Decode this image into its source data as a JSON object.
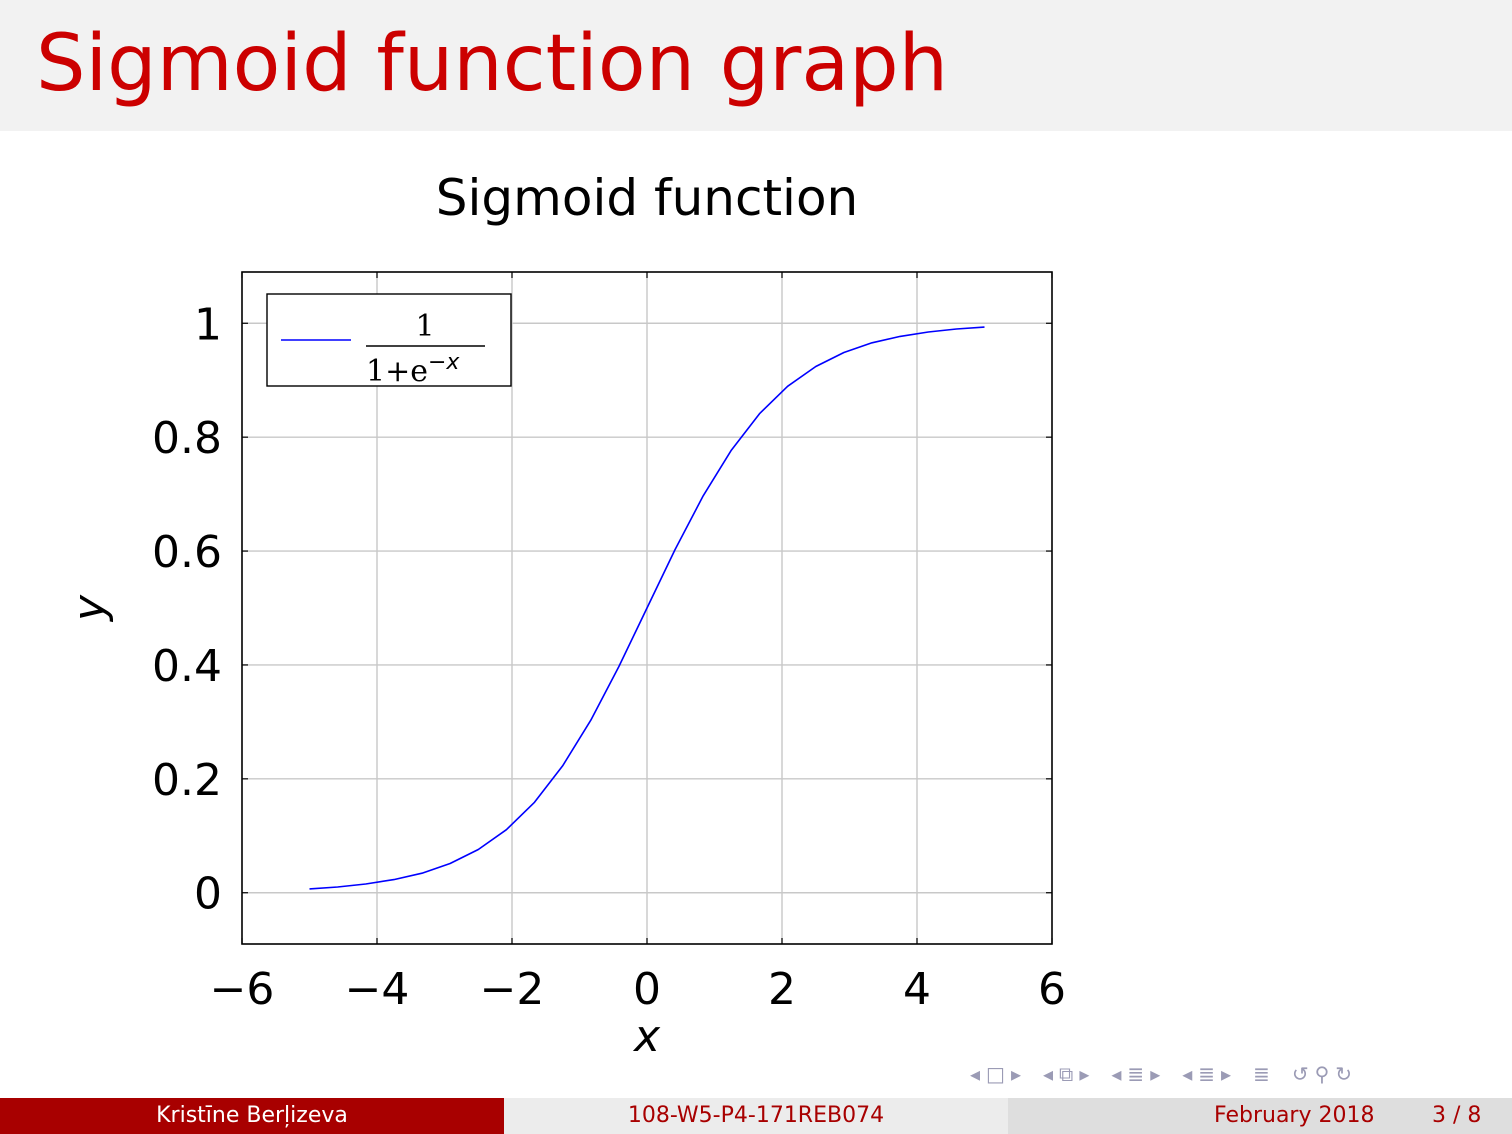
{
  "slide": {
    "title": "Sigmoid function graph"
  },
  "footer": {
    "author": "Kristīne Berļizeva",
    "code": "108-W5-P4-171REB074",
    "date": "February 2018",
    "page": "3 / 8"
  },
  "colors": {
    "title": "#cc0000",
    "footer_dark": "#a80000",
    "series": "#0000ff"
  },
  "nav_icons": [
    "nav-frame-prev-icon",
    "nav-frame-icon",
    "nav-frame-next-icon",
    "nav-subsection-prev-icon",
    "nav-subsection-icon",
    "nav-subsection-next-icon",
    "nav-section-prev-icon",
    "nav-section-icon",
    "nav-section-next-icon",
    "nav-appendix-icon",
    "nav-search-icon",
    "nav-back-icon"
  ],
  "chart_data": {
    "type": "line",
    "title": "Sigmoid function",
    "xlabel": "x",
    "ylabel": "y",
    "xlim": [
      -6,
      6
    ],
    "ylim": [
      -0.09,
      1.09
    ],
    "xticks": [
      -6,
      -4,
      -2,
      0,
      2,
      4,
      6
    ],
    "yticks": [
      0,
      0.2,
      0.4,
      0.6,
      0.8,
      1
    ],
    "xtick_labels": [
      "−6",
      "−4",
      "−2",
      "0",
      "2",
      "4",
      "6"
    ],
    "ytick_labels": [
      "0",
      "0.2",
      "0.4",
      "0.6",
      "0.8",
      "1"
    ],
    "grid": true,
    "legend_position": "top-left",
    "series": [
      {
        "name": "1/(1+e^−x)",
        "legend_numerator": "1",
        "legend_denominator": "1+e",
        "legend_exponent": "−x",
        "color": "#0000ff",
        "x": [
          -5,
          -4.583,
          -4.167,
          -3.75,
          -3.333,
          -2.917,
          -2.5,
          -2.083,
          -1.667,
          -1.25,
          -0.833,
          -0.417,
          0,
          0.417,
          0.833,
          1.25,
          1.667,
          2.083,
          2.5,
          2.917,
          3.333,
          3.75,
          4.167,
          4.583,
          5
        ],
        "y": [
          0.0067,
          0.0101,
          0.0153,
          0.023,
          0.0344,
          0.0513,
          0.0759,
          0.1107,
          0.1588,
          0.2227,
          0.3029,
          0.3973,
          0.5,
          0.6027,
          0.6971,
          0.7773,
          0.8412,
          0.8893,
          0.9241,
          0.9487,
          0.9656,
          0.977,
          0.9847,
          0.9899,
          0.9933
        ]
      }
    ]
  }
}
